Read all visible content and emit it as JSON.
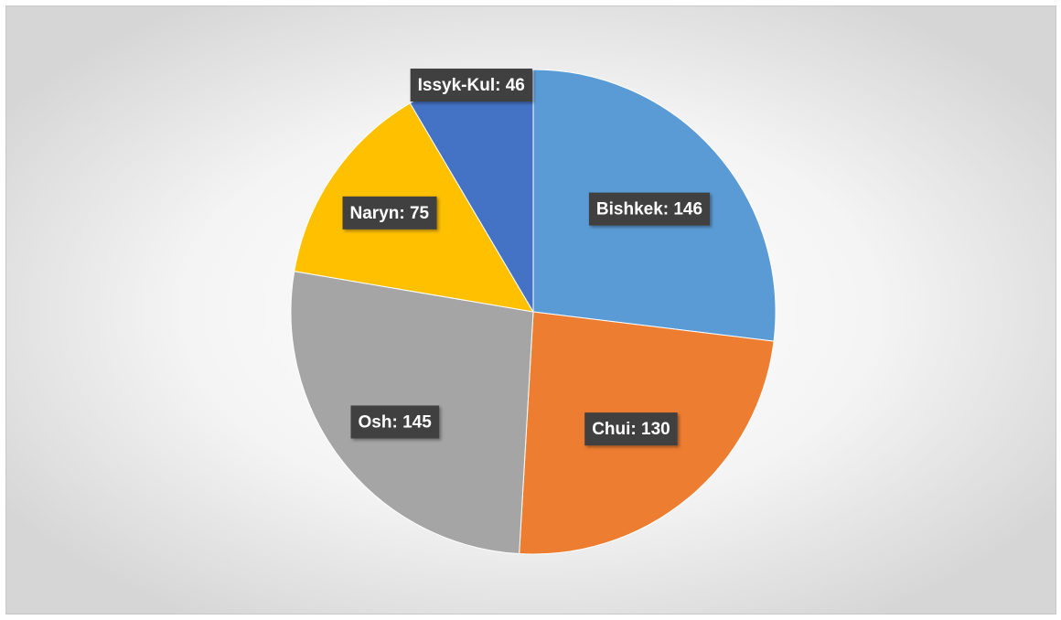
{
  "chart_data": {
    "type": "pie",
    "values": [
      146,
      130,
      145,
      75,
      46
    ],
    "value_labels": [
      "Bishkek: 146",
      "Chui: 130",
      "Osh: 145",
      "Naryn: 75",
      "Issyk-Kul: 46"
    ],
    "colors": [
      "#5b9bd5",
      "#ed7d31",
      "#a5a5a5",
      "#ffc000",
      "#4472c4"
    ]
  }
}
